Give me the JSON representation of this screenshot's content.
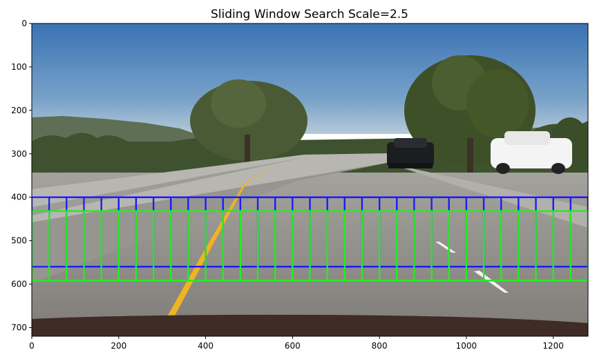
{
  "chart_data": {
    "type": "image",
    "title": "Sliding Window Search Scale=2.5",
    "xlim": [
      0,
      1280
    ],
    "ylim": [
      720,
      0
    ],
    "x_ticks": [
      0,
      200,
      400,
      600,
      800,
      1000,
      1200
    ],
    "y_ticks": [
      0,
      100,
      200,
      300,
      400,
      500,
      600,
      700
    ],
    "grid": false,
    "legend": "none",
    "window_size": 160,
    "window_step": 40,
    "series": [
      {
        "color": "#1a1aff",
        "y_top": 400,
        "y_bottom": 560,
        "x_start": 0,
        "x_end": 1240
      },
      {
        "color": "#22ee22",
        "y_top": 432,
        "y_bottom": 592,
        "x_start": 0,
        "x_end": 1240
      }
    ]
  },
  "colors": {
    "sky_top": "#3d78b8",
    "sky_bottom": "#a9c3d9",
    "road": "#8d8c8a",
    "lane_yellow": "#f0b321",
    "trees": "#3e4f2a"
  }
}
